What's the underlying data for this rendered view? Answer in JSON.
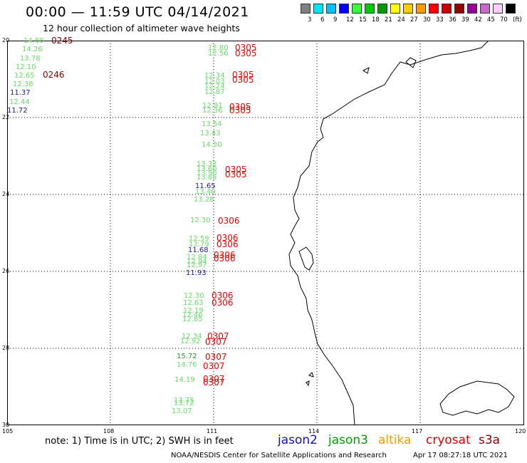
{
  "header": {
    "title": "00:00 — 11:59 UTC 04/14/2021",
    "subtitle": "12 hour collection of altimeter wave heights"
  },
  "scale": {
    "labels": [
      "3",
      "6",
      "9",
      "12",
      "15",
      "18",
      "21",
      "24",
      "27",
      "30",
      "33",
      "36",
      "39",
      "42",
      "45",
      "70",
      "(ft)"
    ],
    "colors": [
      "#808080",
      "#00e5ff",
      "#00bfff",
      "#0000ff",
      "#33ff33",
      "#00cc00",
      "#009900",
      "#ffff00",
      "#ffcc00",
      "#ff9900",
      "#ff0000",
      "#cc0000",
      "#990000",
      "#990099",
      "#cc66cc",
      "#ffccff",
      "#000000"
    ]
  },
  "axes": {
    "lat_labels": [
      "20",
      "22",
      "24",
      "26",
      "28",
      "30"
    ],
    "lon_labels": [
      "105",
      "108",
      "111",
      "114",
      "117",
      "120"
    ]
  },
  "colors": {
    "jason2": "#1010c0",
    "jason3": "#00a000",
    "altika": "#ff9900",
    "cryosat": "#dd0000",
    "s3a": "#8b0000",
    "obs_green": "#66dd66",
    "obs_blue": "#1a1aa0",
    "obs_darkgreen": "#229922",
    "pass_red": "#ee0000",
    "pass_darkred": "#8b0000"
  },
  "observations": [
    {
      "text": "14.68",
      "color": "#66dd66"
    },
    {
      "text": "14.26",
      "color": "#66dd66"
    },
    {
      "text": "13.78",
      "color": "#66dd66"
    },
    {
      "text": "12.10",
      "color": "#66dd66"
    },
    {
      "text": "12.65",
      "color": "#66dd66"
    },
    {
      "text": "12.38",
      "color": "#66dd66"
    },
    {
      "text": "11.37",
      "color": "#1a1aa0"
    },
    {
      "text": "12.44",
      "color": "#66dd66"
    },
    {
      "text": "11.72",
      "color": "#1a1aa0"
    },
    {
      "text": "12.80",
      "color": "#66dd66"
    },
    {
      "text": "12.56",
      "color": "#66dd66"
    },
    {
      "text": "12.34",
      "color": "#66dd66"
    },
    {
      "text": "12.03",
      "color": "#66dd66"
    },
    {
      "text": "12.24",
      "color": "#66dd66"
    },
    {
      "text": "12.87",
      "color": "#66dd66"
    },
    {
      "text": "12.91",
      "color": "#66dd66"
    },
    {
      "text": "12.36",
      "color": "#66dd66"
    },
    {
      "text": "13.54",
      "color": "#66dd66"
    },
    {
      "text": "13.43",
      "color": "#66dd66"
    },
    {
      "text": "14.30",
      "color": "#66dd66"
    },
    {
      "text": "13.32",
      "color": "#66dd66"
    },
    {
      "text": "13.60",
      "color": "#66dd66"
    },
    {
      "text": "13.90",
      "color": "#66dd66"
    },
    {
      "text": "13.85",
      "color": "#66dd66"
    },
    {
      "text": "11.65",
      "color": "#1a1aa0"
    },
    {
      "text": "13.40",
      "color": "#66dd66"
    },
    {
      "text": "13.28",
      "color": "#66dd66"
    },
    {
      "text": "12.30",
      "color": "#66dd66"
    },
    {
      "text": "12.59",
      "color": "#66dd66"
    },
    {
      "text": "12.79",
      "color": "#66dd66"
    },
    {
      "text": "11.68",
      "color": "#1a1aa0"
    },
    {
      "text": "12.84",
      "color": "#66dd66"
    },
    {
      "text": "12.94",
      "color": "#66dd66"
    },
    {
      "text": "12.97",
      "color": "#66dd66"
    },
    {
      "text": "11.93",
      "color": "#1a1aa0"
    },
    {
      "text": "12.30",
      "color": "#66dd66"
    },
    {
      "text": "12.63",
      "color": "#66dd66"
    },
    {
      "text": "12.19",
      "color": "#66dd66"
    },
    {
      "text": "12.46",
      "color": "#66dd66"
    },
    {
      "text": "12.85",
      "color": "#66dd66"
    },
    {
      "text": "12.34",
      "color": "#66dd66"
    },
    {
      "text": "12.92",
      "color": "#66dd66"
    },
    {
      "text": "15.72",
      "color": "#229922"
    },
    {
      "text": "14.76",
      "color": "#66dd66"
    },
    {
      "text": "14.19",
      "color": "#66dd66"
    },
    {
      "text": "13.75",
      "color": "#66dd66"
    },
    {
      "text": "13.72",
      "color": "#66dd66"
    },
    {
      "text": "13.07",
      "color": "#66dd66"
    }
  ],
  "pass_labels": [
    {
      "text": "0245",
      "color": "#8b0000"
    },
    {
      "text": "0246",
      "color": "#8b0000"
    },
    {
      "text": "0305",
      "color": "#ee0000"
    },
    {
      "text": "0305",
      "color": "#ee0000"
    },
    {
      "text": "0305",
      "color": "#ee0000"
    },
    {
      "text": "0305",
      "color": "#ee0000"
    },
    {
      "text": "0305",
      "color": "#ee0000"
    },
    {
      "text": "0305",
      "color": "#ee0000"
    },
    {
      "text": "0305",
      "color": "#ee0000"
    },
    {
      "text": "0305",
      "color": "#ee0000"
    },
    {
      "text": "0306",
      "color": "#ee0000"
    },
    {
      "text": "0306",
      "color": "#ee0000"
    },
    {
      "text": "0306",
      "color": "#ee0000"
    },
    {
      "text": "0306",
      "color": "#ee0000"
    },
    {
      "text": "0306",
      "color": "#ee0000"
    },
    {
      "text": "0306",
      "color": "#ee0000"
    },
    {
      "text": "0306",
      "color": "#ee0000"
    },
    {
      "text": "0307",
      "color": "#ee0000"
    },
    {
      "text": "0307",
      "color": "#ee0000"
    },
    {
      "text": "0307",
      "color": "#ee0000"
    },
    {
      "text": "0307",
      "color": "#ee0000"
    },
    {
      "text": "0307",
      "color": "#ee0000"
    },
    {
      "text": "0307",
      "color": "#ee0000"
    }
  ],
  "footer": {
    "note": "note: 1) Time is in UTC; 2) SWH is in feet",
    "legend": [
      "jason2",
      "jason3",
      "altika",
      "cryosat",
      "s3a"
    ],
    "credit": "NOAA/NESDIS Center for Satellite Applications and Research",
    "timestamp": "Apr 17 08:27:18 UTC 2021"
  }
}
